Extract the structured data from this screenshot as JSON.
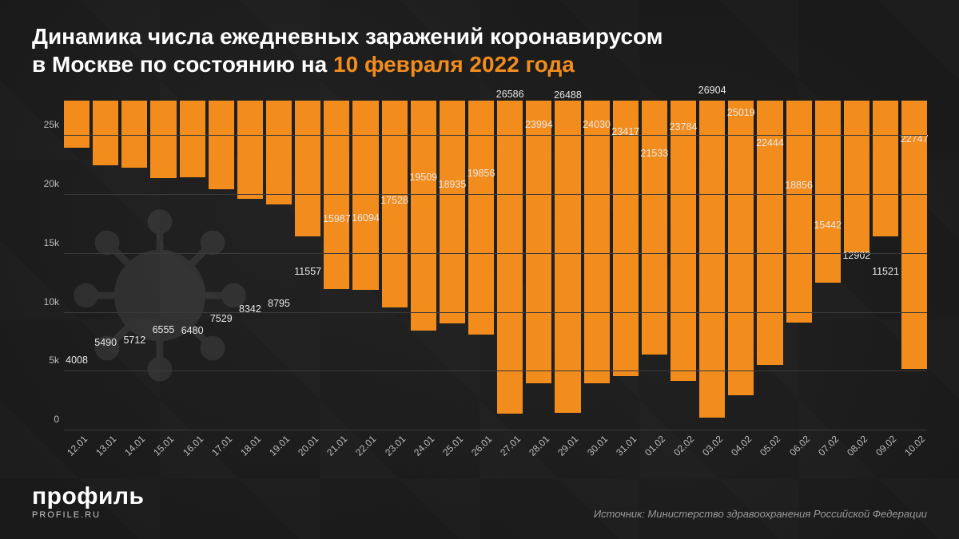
{
  "title": {
    "line1": "Динамика числа ежедневных заражений коронавирусом",
    "line2_prefix": "в Москве по состоянию на ",
    "line2_accent": "10 февраля 2022 года",
    "fontsize": 28,
    "color_main": "#ffffff",
    "color_accent": "#f28c1c"
  },
  "chart": {
    "type": "bar",
    "background_color": "#1a1a1a",
    "bar_color": "#f28c1c",
    "grid_color": "#3a3a3a",
    "value_label_color": "#e8e8e8",
    "tick_label_color": "#bdbdbd",
    "value_label_fontsize": 12.5,
    "tick_label_fontsize": 12,
    "bar_width": 0.9,
    "ylim": [
      0,
      28000
    ],
    "yticks": [
      0,
      5000,
      10000,
      15000,
      20000,
      25000
    ],
    "ytick_labels": [
      "0",
      "5k",
      "10k",
      "15k",
      "20k",
      "25k"
    ],
    "categories": [
      "12.01",
      "13.01",
      "14.01",
      "15.01",
      "16.01",
      "17.01",
      "18.01",
      "19.01",
      "20.01",
      "21.01",
      "22.01",
      "23.01",
      "24.01",
      "25.01",
      "26.01",
      "27.01",
      "28.01",
      "29.01",
      "30.01",
      "31.01",
      "01.02",
      "02.02",
      "03.02",
      "04.02",
      "05.02",
      "06.02",
      "07.02",
      "08.02",
      "09.02",
      "10.02"
    ],
    "values": [
      4008,
      5490,
      5712,
      6555,
      6480,
      7529,
      8342,
      8795,
      11557,
      15987,
      16094,
      17528,
      19509,
      18935,
      19856,
      26586,
      23994,
      26488,
      24030,
      23417,
      21533,
      23784,
      26904,
      25019,
      22444,
      18856,
      15442,
      12902,
      11521,
      22747
    ]
  },
  "logo": {
    "main": "профиль",
    "sub": "PROFILE.RU"
  },
  "source": "Источник: Министерство здравоохранения Российской Федерации"
}
